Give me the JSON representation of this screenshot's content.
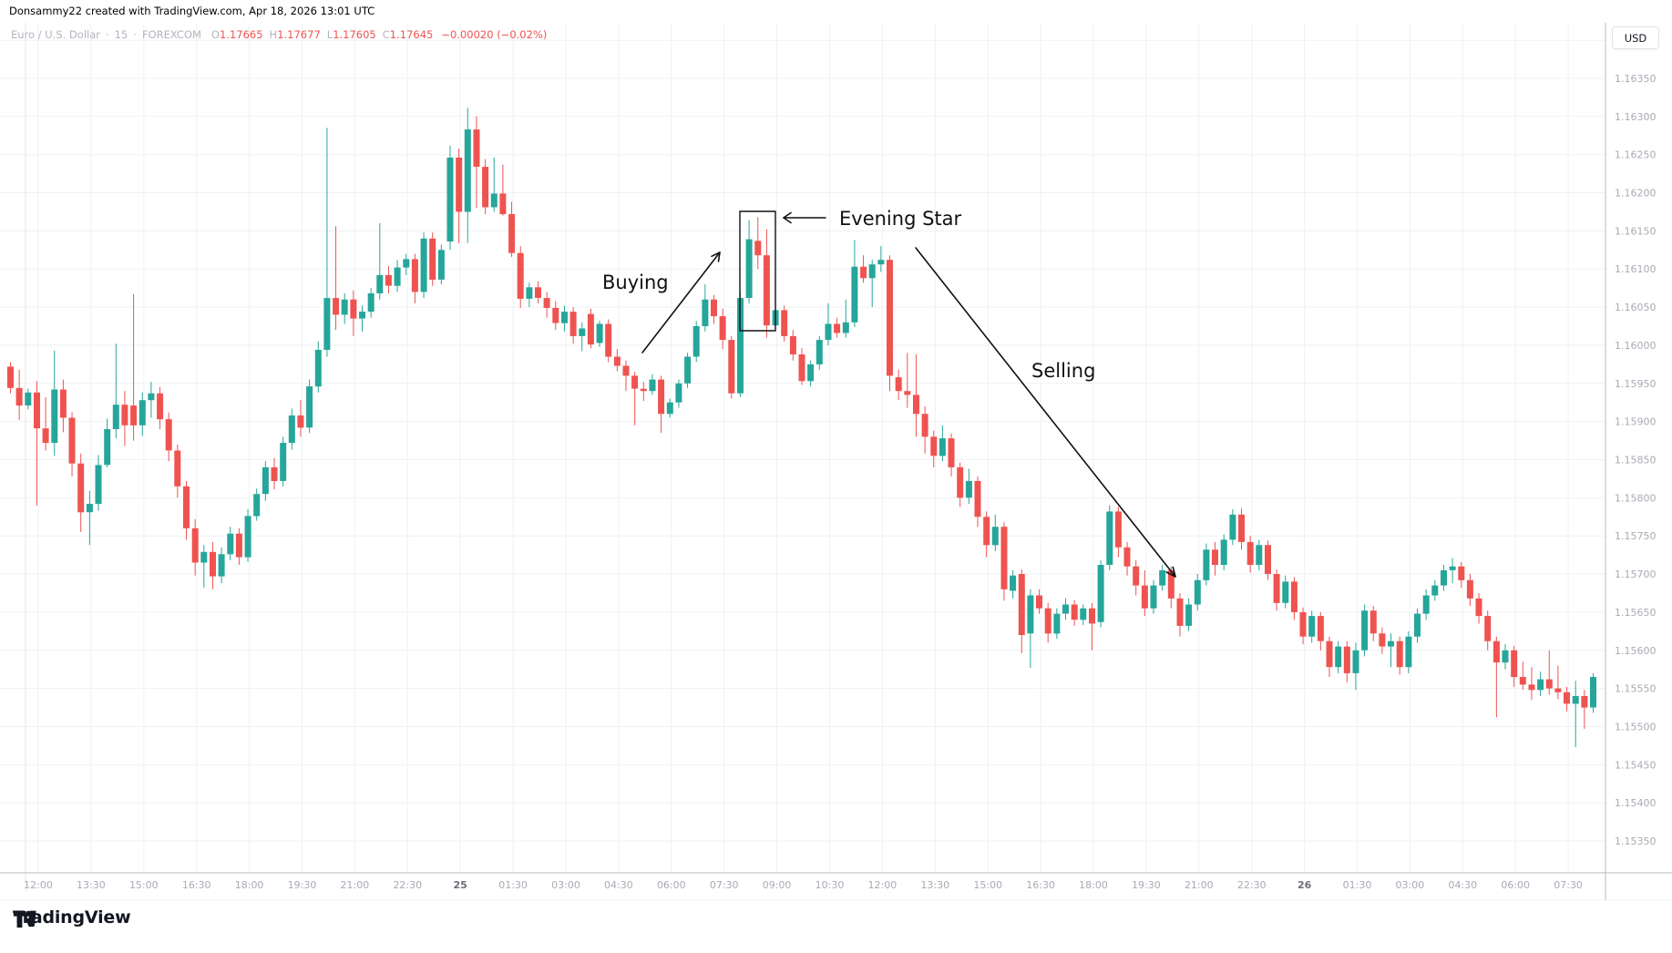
{
  "watermark": "Donsammy22 created with TradingView.com, Apr 18, 2026 13:01 UTC",
  "legend": {
    "symbol": "Euro / U.S. Dollar",
    "interval": "15",
    "exchange": "FOREXCOM",
    "separator": "·",
    "ohlc": [
      {
        "label": "O",
        "value": "1.17665"
      },
      {
        "label": "H",
        "value": "1.17677"
      },
      {
        "label": "L",
        "value": "1.17605"
      },
      {
        "label": "C",
        "value": "1.17645"
      }
    ],
    "change": "−0.00020 (−0.02%)"
  },
  "axis": {
    "currency_badge": "USD",
    "price_labels": [
      "1.16350",
      "1.16300",
      "1.16250",
      "1.16200",
      "1.16150",
      "1.16100",
      "1.16050",
      "1.16000",
      "1.15950",
      "1.15900",
      "1.15850",
      "1.15800",
      "1.15750",
      "1.15700",
      "1.15650",
      "1.15600",
      "1.15550",
      "1.15500",
      "1.15450",
      "1.15400",
      "1.15350"
    ],
    "time_labels": [
      {
        "t": "12:00",
        "bold": false
      },
      {
        "t": "13:30",
        "bold": false
      },
      {
        "t": "15:00",
        "bold": false
      },
      {
        "t": "16:30",
        "bold": false
      },
      {
        "t": "18:00",
        "bold": false
      },
      {
        "t": "19:30",
        "bold": false
      },
      {
        "t": "21:00",
        "bold": false
      },
      {
        "t": "22:30",
        "bold": false
      },
      {
        "t": "25",
        "bold": true
      },
      {
        "t": "01:30",
        "bold": false
      },
      {
        "t": "03:00",
        "bold": false
      },
      {
        "t": "04:30",
        "bold": false
      },
      {
        "t": "06:00",
        "bold": false
      },
      {
        "t": "07:30",
        "bold": false
      },
      {
        "t": "09:00",
        "bold": false
      },
      {
        "t": "10:30",
        "bold": false
      },
      {
        "t": "12:00",
        "bold": false
      },
      {
        "t": "13:30",
        "bold": false
      },
      {
        "t": "15:00",
        "bold": false
      },
      {
        "t": "16:30",
        "bold": false
      },
      {
        "t": "18:00",
        "bold": false
      },
      {
        "t": "19:30",
        "bold": false
      },
      {
        "t": "21:00",
        "bold": false
      },
      {
        "t": "22:30",
        "bold": false
      },
      {
        "t": "26",
        "bold": true
      },
      {
        "t": "01:30",
        "bold": false
      },
      {
        "t": "03:00",
        "bold": false
      },
      {
        "t": "04:30",
        "bold": false
      },
      {
        "t": "06:00",
        "bold": false
      },
      {
        "t": "07:30",
        "bold": false
      }
    ]
  },
  "annotations": {
    "buying": "Buying",
    "evening_star": "Evening Star",
    "selling": "Selling"
  },
  "footer_logo": "TradingView",
  "colors": {
    "up": "#26a69a",
    "down": "#ef5350",
    "annotation": "#111111",
    "axis_text": "#a8abb3",
    "axis_text_bold": "#6b6e76",
    "grid": "#eff1f4",
    "pane_border": "#b7bac2"
  },
  "chart_data": {
    "type": "candlestick",
    "title": "Euro / U.S. Dollar",
    "exchange": "FOREXCOM",
    "interval_minutes": 15,
    "quote_currency": "USD",
    "y_axis_range": [
      1.1535,
      1.164
    ],
    "y_tick_step": 0.0005,
    "x_tick_labels": [
      "12:00",
      "13:30",
      "15:00",
      "16:30",
      "18:00",
      "19:30",
      "21:00",
      "22:30",
      "25",
      "01:30",
      "03:00",
      "04:30",
      "06:00",
      "07:30",
      "09:00",
      "10:30",
      "12:00",
      "13:30",
      "15:00",
      "16:30",
      "18:00",
      "19:30",
      "21:00",
      "22:30",
      "26",
      "01:30",
      "03:00",
      "04:30",
      "06:00",
      "07:30"
    ],
    "grid": true,
    "pattern_annotations": [
      {
        "label": "Buying",
        "kind": "trend-arrow-up"
      },
      {
        "label": "Evening Star",
        "kind": "pattern-box",
        "candles": [
          84,
          85,
          86
        ]
      },
      {
        "label": "Selling",
        "kind": "trend-arrow-down"
      }
    ],
    "candles": [
      [
        1.15972,
        1.15978,
        1.15937,
        1.15944
      ],
      [
        1.15944,
        1.15968,
        1.15902,
        1.15921
      ],
      [
        1.15921,
        1.15943,
        1.15916,
        1.15938
      ],
      [
        1.15938,
        1.15953,
        1.1579,
        1.15891
      ],
      [
        1.15891,
        1.15932,
        1.15862,
        1.15872
      ],
      [
        1.15872,
        1.15993,
        1.15855,
        1.15942
      ],
      [
        1.15942,
        1.15955,
        1.15886,
        1.15905
      ],
      [
        1.15905,
        1.15912,
        1.15828,
        1.15845
      ],
      [
        1.15845,
        1.15858,
        1.15755,
        1.15781
      ],
      [
        1.15781,
        1.15809,
        1.15738,
        1.15792
      ],
      [
        1.15792,
        1.15856,
        1.15783,
        1.15843
      ],
      [
        1.15843,
        1.15904,
        1.1584,
        1.1589
      ],
      [
        1.1589,
        1.16002,
        1.15878,
        1.15922
      ],
      [
        1.15922,
        1.1594,
        1.15868,
        1.15895
      ],
      [
        1.15921,
        1.16067,
        1.15875,
        1.15895
      ],
      [
        1.15895,
        1.15938,
        1.15881,
        1.15928
      ],
      [
        1.15928,
        1.15952,
        1.15905,
        1.15937
      ],
      [
        1.15937,
        1.15945,
        1.1589,
        1.15903
      ],
      [
        1.15903,
        1.15912,
        1.15848,
        1.15862
      ],
      [
        1.15862,
        1.1587,
        1.158,
        1.15815
      ],
      [
        1.15815,
        1.15822,
        1.15745,
        1.1576
      ],
      [
        1.1576,
        1.15772,
        1.15698,
        1.15715
      ],
      [
        1.15715,
        1.15738,
        1.15682,
        1.15729
      ],
      [
        1.15729,
        1.15742,
        1.1568,
        1.15697
      ],
      [
        1.15697,
        1.15735,
        1.15688,
        1.15726
      ],
      [
        1.15726,
        1.15762,
        1.15718,
        1.15753
      ],
      [
        1.15753,
        1.1576,
        1.15712,
        1.15722
      ],
      [
        1.15722,
        1.15785,
        1.15716,
        1.15776
      ],
      [
        1.15776,
        1.15812,
        1.1577,
        1.15805
      ],
      [
        1.15805,
        1.15848,
        1.15796,
        1.1584
      ],
      [
        1.1584,
        1.15852,
        1.15811,
        1.15822
      ],
      [
        1.15822,
        1.1588,
        1.15815,
        1.15872
      ],
      [
        1.15872,
        1.15917,
        1.15863,
        1.15908
      ],
      [
        1.15908,
        1.15928,
        1.1588,
        1.15892
      ],
      [
        1.15892,
        1.15955,
        1.15885,
        1.15946
      ],
      [
        1.15946,
        1.16005,
        1.15938,
        1.15994
      ],
      [
        1.15994,
        1.16285,
        1.15985,
        1.16062
      ],
      [
        1.16062,
        1.16156,
        1.1602,
        1.1604
      ],
      [
        1.1604,
        1.16068,
        1.16028,
        1.1606
      ],
      [
        1.1606,
        1.16072,
        1.16012,
        1.16035
      ],
      [
        1.16035,
        1.16052,
        1.16018,
        1.16044
      ],
      [
        1.16044,
        1.16075,
        1.16036,
        1.16068
      ],
      [
        1.16068,
        1.1616,
        1.1606,
        1.16092
      ],
      [
        1.16092,
        1.16104,
        1.16068,
        1.16078
      ],
      [
        1.16078,
        1.16112,
        1.1607,
        1.16102
      ],
      [
        1.16102,
        1.1612,
        1.16092,
        1.16113
      ],
      [
        1.16113,
        1.1612,
        1.16055,
        1.1607
      ],
      [
        1.1607,
        1.16148,
        1.16062,
        1.1614
      ],
      [
        1.1614,
        1.16148,
        1.16078,
        1.16086
      ],
      [
        1.16086,
        1.16132,
        1.1608,
        1.16125
      ],
      [
        1.16136,
        1.16262,
        1.16125,
        1.16246
      ],
      [
        1.16246,
        1.16258,
        1.16134,
        1.16175
      ],
      [
        1.16175,
        1.16311,
        1.16134,
        1.16283
      ],
      [
        1.16283,
        1.163,
        1.1618,
        1.16234
      ],
      [
        1.16234,
        1.16244,
        1.16172,
        1.16181
      ],
      [
        1.16181,
        1.16246,
        1.16175,
        1.16199
      ],
      [
        1.16199,
        1.16237,
        1.1617,
        1.16172
      ],
      [
        1.16172,
        1.16188,
        1.16116,
        1.16121
      ],
      [
        1.16121,
        1.1613,
        1.16049,
        1.16061
      ],
      [
        1.16061,
        1.16082,
        1.1605,
        1.16076
      ],
      [
        1.16076,
        1.16084,
        1.16055,
        1.16062
      ],
      [
        1.16062,
        1.1607,
        1.16036,
        1.16049
      ],
      [
        1.16049,
        1.16058,
        1.1602,
        1.16029
      ],
      [
        1.16029,
        1.16052,
        1.16018,
        1.16044
      ],
      [
        1.16044,
        1.1605,
        1.16002,
        1.16012
      ],
      [
        1.16012,
        1.1603,
        1.15992,
        1.16022
      ],
      [
        1.16041,
        1.16048,
        1.15996,
        1.16001
      ],
      [
        1.16003,
        1.16032,
        1.15998,
        1.16028
      ],
      [
        1.16028,
        1.16034,
        1.15978,
        1.15985
      ],
      [
        1.15985,
        1.15995,
        1.15966,
        1.15973
      ],
      [
        1.15973,
        1.1598,
        1.1594,
        1.1596
      ],
      [
        1.1596,
        1.15965,
        1.15895,
        1.15943
      ],
      [
        1.15943,
        1.15952,
        1.15927,
        1.1594
      ],
      [
        1.1594,
        1.15962,
        1.15935,
        1.15955
      ],
      [
        1.15955,
        1.1596,
        1.15885,
        1.1591
      ],
      [
        1.1591,
        1.1593,
        1.15905,
        1.15925
      ],
      [
        1.15925,
        1.15955,
        1.15918,
        1.1595
      ],
      [
        1.1595,
        1.1599,
        1.15944,
        1.15985
      ],
      [
        1.15985,
        1.16032,
        1.15978,
        1.16025
      ],
      [
        1.16025,
        1.1608,
        1.16018,
        1.1606
      ],
      [
        1.1606,
        1.16066,
        1.16028,
        1.16038
      ],
      [
        1.16038,
        1.16048,
        1.15995,
        1.16007
      ],
      [
        1.16007,
        1.16012,
        1.1593,
        1.15937
      ],
      [
        1.15937,
        1.1607,
        1.15932,
        1.16062
      ],
      [
        1.16062,
        1.16164,
        1.16055,
        1.16139
      ],
      [
        1.16137,
        1.16168,
        1.161,
        1.16118
      ],
      [
        1.16118,
        1.16152,
        1.1601,
        1.16026
      ],
      [
        1.16026,
        1.16092,
        1.16018,
        1.16046
      ],
      [
        1.16046,
        1.16052,
        1.16005,
        1.16012
      ],
      [
        1.16012,
        1.1602,
        1.1598,
        1.15988
      ],
      [
        1.15988,
        1.15996,
        1.15948,
        1.15953
      ],
      [
        1.15953,
        1.1598,
        1.15946,
        1.15975
      ],
      [
        1.15975,
        1.16012,
        1.15968,
        1.16007
      ],
      [
        1.16007,
        1.16055,
        1.16,
        1.16028
      ],
      [
        1.16028,
        1.16036,
        1.1601,
        1.16016
      ],
      [
        1.16016,
        1.1606,
        1.1601,
        1.1603
      ],
      [
        1.1603,
        1.16138,
        1.16024,
        1.16103
      ],
      [
        1.16103,
        1.16118,
        1.16082,
        1.16088
      ],
      [
        1.16088,
        1.16112,
        1.1605,
        1.16106
      ],
      [
        1.16106,
        1.1613,
        1.16096,
        1.16112
      ],
      [
        1.16112,
        1.16118,
        1.1594,
        1.1596
      ],
      [
        1.15958,
        1.15968,
        1.15928,
        1.1594
      ],
      [
        1.1594,
        1.1599,
        1.15918,
        1.15935
      ],
      [
        1.15935,
        1.15988,
        1.1588,
        1.1591
      ],
      [
        1.1591,
        1.1592,
        1.15858,
        1.1588
      ],
      [
        1.1588,
        1.15888,
        1.1584,
        1.15855
      ],
      [
        1.15855,
        1.15895,
        1.15848,
        1.15878
      ],
      [
        1.15878,
        1.15884,
        1.15828,
        1.1584
      ],
      [
        1.1584,
        1.15846,
        1.15788,
        1.158
      ],
      [
        1.158,
        1.15838,
        1.15792,
        1.15822
      ],
      [
        1.15822,
        1.15828,
        1.15762,
        1.15775
      ],
      [
        1.15775,
        1.15782,
        1.15722,
        1.15738
      ],
      [
        1.15738,
        1.15778,
        1.1573,
        1.15762
      ],
      [
        1.15762,
        1.15768,
        1.15665,
        1.1568
      ],
      [
        1.15678,
        1.15705,
        1.15668,
        1.15698
      ],
      [
        1.157,
        1.15706,
        1.15596,
        1.1562
      ],
      [
        1.15622,
        1.1568,
        1.15577,
        1.15672
      ],
      [
        1.15672,
        1.1568,
        1.15648,
        1.15655
      ],
      [
        1.15655,
        1.15662,
        1.1561,
        1.15622
      ],
      [
        1.15622,
        1.15655,
        1.15615,
        1.15648
      ],
      [
        1.15648,
        1.15668,
        1.1564,
        1.1566
      ],
      [
        1.1566,
        1.15666,
        1.15632,
        1.1564
      ],
      [
        1.1564,
        1.1566,
        1.15633,
        1.15655
      ],
      [
        1.15655,
        1.15662,
        1.156,
        1.15635
      ],
      [
        1.15637,
        1.15718,
        1.1563,
        1.15712
      ],
      [
        1.15712,
        1.1579,
        1.15705,
        1.15782
      ],
      [
        1.15782,
        1.15788,
        1.15722,
        1.15735
      ],
      [
        1.15735,
        1.15742,
        1.15698,
        1.1571
      ],
      [
        1.1571,
        1.15718,
        1.15672,
        1.15685
      ],
      [
        1.15685,
        1.15705,
        1.15645,
        1.15655
      ],
      [
        1.15655,
        1.15692,
        1.15648,
        1.15685
      ],
      [
        1.15685,
        1.15712,
        1.15678,
        1.15705
      ],
      [
        1.15705,
        1.1571,
        1.15655,
        1.15668
      ],
      [
        1.15668,
        1.15675,
        1.15618,
        1.15632
      ],
      [
        1.15632,
        1.15668,
        1.15625,
        1.1566
      ],
      [
        1.1566,
        1.157,
        1.15652,
        1.15692
      ],
      [
        1.15692,
        1.1574,
        1.15685,
        1.15732
      ],
      [
        1.15732,
        1.15742,
        1.15698,
        1.15712
      ],
      [
        1.15712,
        1.15752,
        1.15705,
        1.15745
      ],
      [
        1.15745,
        1.15785,
        1.15738,
        1.15778
      ],
      [
        1.15778,
        1.15786,
        1.15732,
        1.15742
      ],
      [
        1.15742,
        1.1575,
        1.15702,
        1.15712
      ],
      [
        1.15712,
        1.15745,
        1.15705,
        1.15738
      ],
      [
        1.15738,
        1.15744,
        1.15692,
        1.157
      ],
      [
        1.157,
        1.15706,
        1.15652,
        1.15662
      ],
      [
        1.15662,
        1.15698,
        1.15655,
        1.1569
      ],
      [
        1.1569,
        1.15696,
        1.1564,
        1.1565
      ],
      [
        1.1565,
        1.15656,
        1.15608,
        1.15618
      ],
      [
        1.15618,
        1.15652,
        1.1561,
        1.15645
      ],
      [
        1.15645,
        1.1565,
        1.156,
        1.15612
      ],
      [
        1.15612,
        1.15618,
        1.15565,
        1.15578
      ],
      [
        1.15578,
        1.15612,
        1.1557,
        1.15605
      ],
      [
        1.15605,
        1.15612,
        1.15558,
        1.1557
      ],
      [
        1.1557,
        1.1561,
        1.15548,
        1.156
      ],
      [
        1.156,
        1.1566,
        1.15592,
        1.15652
      ],
      [
        1.15652,
        1.15658,
        1.15612,
        1.15622
      ],
      [
        1.15622,
        1.1563,
        1.15595,
        1.15605
      ],
      [
        1.15605,
        1.15622,
        1.15578,
        1.15612
      ],
      [
        1.15612,
        1.15618,
        1.15568,
        1.15578
      ],
      [
        1.15578,
        1.15625,
        1.1557,
        1.15618
      ],
      [
        1.15618,
        1.15655,
        1.1561,
        1.15648
      ],
      [
        1.15648,
        1.1568,
        1.1564,
        1.15672
      ],
      [
        1.15672,
        1.15692,
        1.15665,
        1.15685
      ],
      [
        1.15685,
        1.15712,
        1.15678,
        1.15705
      ],
      [
        1.15705,
        1.15721,
        1.15688,
        1.1571
      ],
      [
        1.1571,
        1.15716,
        1.15682,
        1.15692
      ],
      [
        1.15692,
        1.157,
        1.15658,
        1.15668
      ],
      [
        1.15668,
        1.15675,
        1.15635,
        1.15645
      ],
      [
        1.15645,
        1.15652,
        1.156,
        1.15612
      ],
      [
        1.15612,
        1.15618,
        1.15512,
        1.15584
      ],
      [
        1.15584,
        1.15608,
        1.15575,
        1.156
      ],
      [
        1.156,
        1.15606,
        1.15552,
        1.15565
      ],
      [
        1.15565,
        1.15585,
        1.15548,
        1.15555
      ],
      [
        1.15555,
        1.15578,
        1.15535,
        1.15548
      ],
      [
        1.15548,
        1.15572,
        1.1554,
        1.15562
      ],
      [
        1.15562,
        1.156,
        1.15542,
        1.1555
      ],
      [
        1.1555,
        1.1558,
        1.15536,
        1.15545
      ],
      [
        1.15545,
        1.15552,
        1.1552,
        1.1553
      ],
      [
        1.1553,
        1.1556,
        1.15473,
        1.1554
      ],
      [
        1.1554,
        1.15548,
        1.15497,
        1.15525
      ],
      [
        1.15525,
        1.1557,
        1.15518,
        1.15565
      ]
    ]
  }
}
